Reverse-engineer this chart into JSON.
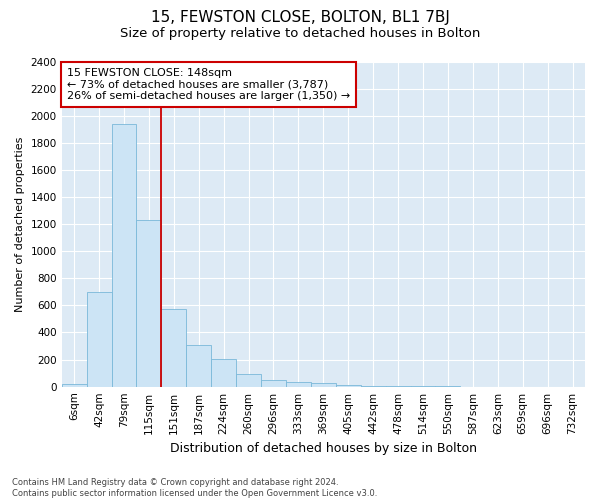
{
  "title": "15, FEWSTON CLOSE, BOLTON, BL1 7BJ",
  "subtitle": "Size of property relative to detached houses in Bolton",
  "xlabel": "Distribution of detached houses by size in Bolton",
  "ylabel": "Number of detached properties",
  "footnote": "Contains HM Land Registry data © Crown copyright and database right 2024.\nContains public sector information licensed under the Open Government Licence v3.0.",
  "bar_labels": [
    "6sqm",
    "42sqm",
    "79sqm",
    "115sqm",
    "151sqm",
    "187sqm",
    "224sqm",
    "260sqm",
    "296sqm",
    "333sqm",
    "369sqm",
    "405sqm",
    "442sqm",
    "478sqm",
    "514sqm",
    "550sqm",
    "587sqm",
    "623sqm",
    "659sqm",
    "696sqm",
    "732sqm"
  ],
  "bar_values": [
    20,
    700,
    1940,
    1230,
    575,
    305,
    205,
    90,
    47,
    35,
    30,
    10,
    5,
    5,
    3,
    2,
    1,
    1,
    1,
    1,
    1
  ],
  "ylim": [
    0,
    2400
  ],
  "yticks": [
    0,
    200,
    400,
    600,
    800,
    1000,
    1200,
    1400,
    1600,
    1800,
    2000,
    2200,
    2400
  ],
  "bar_color": "#cce4f5",
  "bar_edge_color": "#7ab8d9",
  "vline_color": "#cc0000",
  "vline_x": 3.5,
  "annotation_title": "15 FEWSTON CLOSE: 148sqm",
  "annotation_line1": "← 73% of detached houses are smaller (3,787)",
  "annotation_line2": "26% of semi-detached houses are larger (1,350) →",
  "annotation_box_color": "white",
  "annotation_box_edge": "#cc0000",
  "bg_color": "white",
  "plot_bg_color": "#ddeaf5",
  "grid_color": "white",
  "title_fontsize": 11,
  "subtitle_fontsize": 9.5,
  "xlabel_fontsize": 9,
  "ylabel_fontsize": 8,
  "tick_fontsize": 7.5,
  "annot_fontsize": 8,
  "footnote_fontsize": 6
}
